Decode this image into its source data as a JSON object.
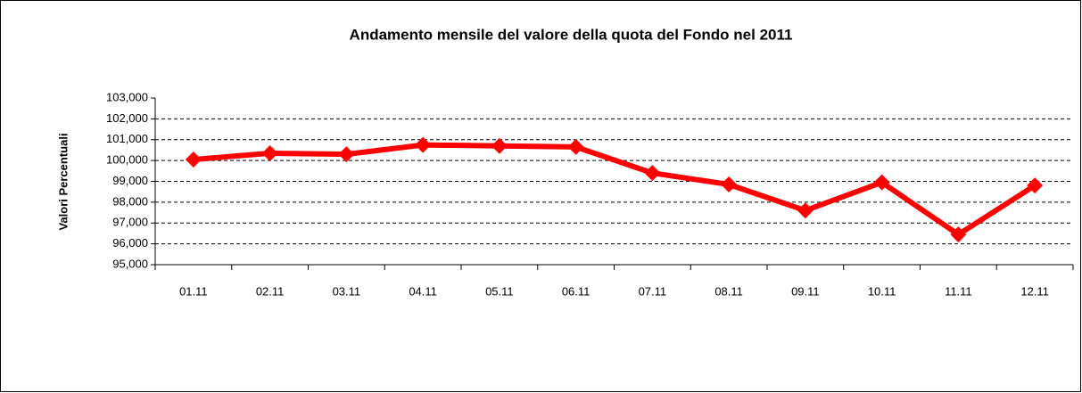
{
  "chart_data": {
    "type": "line",
    "title": "Andamento mensile del valore della quota del Fondo nel 2011",
    "ylabel": "Valori Percentuali",
    "categories": [
      "01.11",
      "02.11",
      "03.11",
      "04.11",
      "05.11",
      "06.11",
      "07.11",
      "08.11",
      "09.11",
      "10.11",
      "11.11",
      "12.11"
    ],
    "series": [
      {
        "color": "#ff0000",
        "values": [
          100.05,
          100.35,
          100.3,
          100.75,
          100.7,
          100.65,
          99.4,
          98.85,
          97.6,
          98.95,
          96.45,
          98.8
        ]
      }
    ],
    "ylim": [
      95,
      103
    ],
    "yticks": [
      {
        "value": 95,
        "label": "95,000"
      },
      {
        "value": 96,
        "label": "96,000"
      },
      {
        "value": 97,
        "label": "97,000"
      },
      {
        "value": 98,
        "label": "98,000"
      },
      {
        "value": 99,
        "label": "99,000"
      },
      {
        "value": 100,
        "label": "100,000"
      },
      {
        "value": 101,
        "label": "101,000"
      },
      {
        "value": 102,
        "label": "102,000"
      },
      {
        "value": 103,
        "label": "103,000"
      }
    ],
    "grid": true
  }
}
